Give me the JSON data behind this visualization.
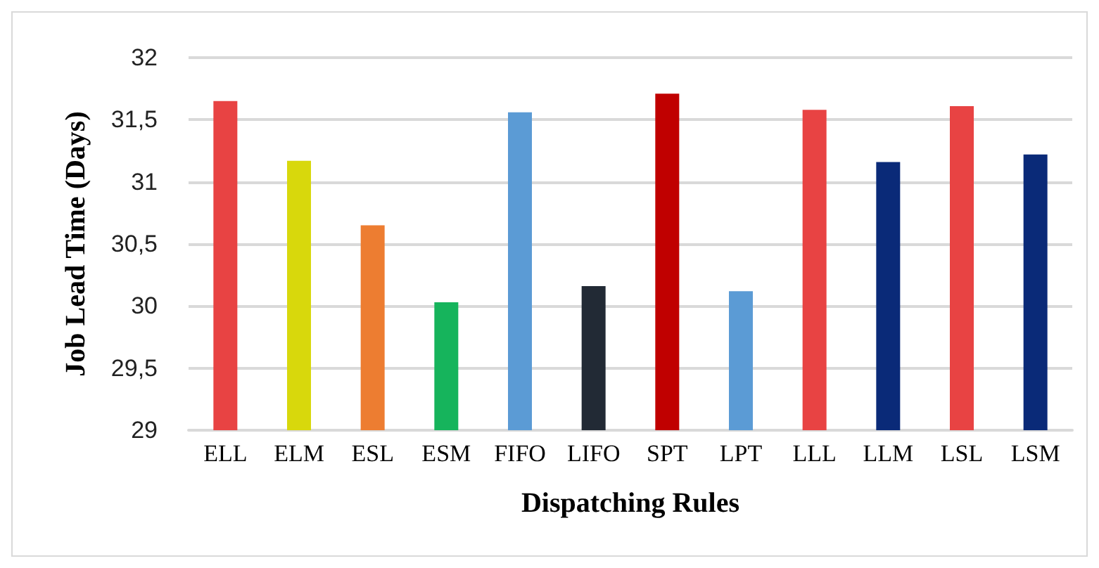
{
  "chart_data": {
    "type": "bar",
    "xlabel": "Dispatching Rules",
    "ylabel": "Job Lead Time (Days)",
    "categories": [
      "ELL",
      "ELM",
      "ESL",
      "ESM",
      "FIFO",
      "LIFO",
      "SPT",
      "LPT",
      "LLL",
      "LLM",
      "LSL",
      "LSM"
    ],
    "values": [
      31.65,
      31.17,
      30.65,
      30.03,
      31.56,
      30.16,
      31.71,
      30.12,
      31.58,
      31.16,
      31.61,
      31.22
    ],
    "colors": [
      "#e84343",
      "#d8d80c",
      "#ed7d31",
      "#16b45c",
      "#5b9bd5",
      "#222a35",
      "#c00000",
      "#5b9bd5",
      "#e84343",
      "#0a2a78",
      "#e84343",
      "#0a2a78"
    ],
    "ylim": [
      29,
      32
    ],
    "yticks": [
      29,
      {
        "value": 29.5,
        "label": "29,5"
      },
      30,
      {
        "value": 30.5,
        "label": "30,5"
      },
      31,
      {
        "value": 31.5,
        "label": "31,5"
      },
      32
    ],
    "grid": "y"
  }
}
